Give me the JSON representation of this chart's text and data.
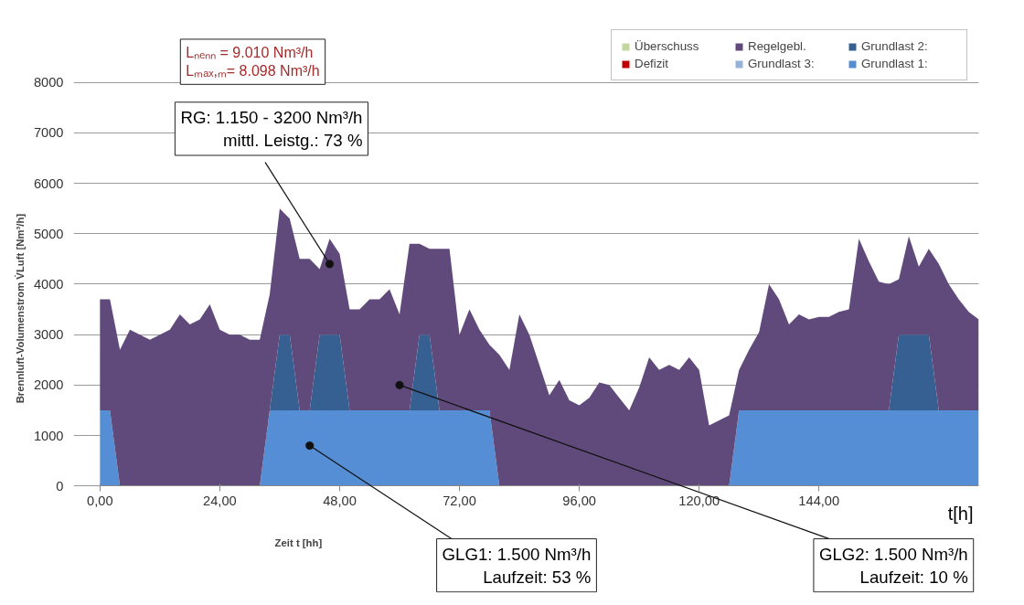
{
  "chart_data": {
    "type": "area",
    "stacked": true,
    "xlabel": "Zeit t [hh]",
    "ylabel": "Brennluft-Volumenstrom  V̇Luft  [Nm³/h]",
    "x": [
      0,
      2,
      4,
      6,
      8,
      10,
      12,
      14,
      16,
      18,
      20,
      22,
      24,
      26,
      28,
      30,
      32,
      34,
      36,
      38,
      40,
      42,
      44,
      46,
      48,
      50,
      52,
      54,
      56,
      58,
      60,
      62,
      64,
      66,
      68,
      70,
      72,
      74,
      76,
      78,
      80,
      82,
      84,
      86,
      88,
      90,
      92,
      94,
      96,
      98,
      100,
      102,
      104,
      106,
      108,
      110,
      112,
      114,
      116,
      118,
      120,
      122,
      124,
      126,
      128,
      130,
      132,
      134,
      136,
      138,
      140,
      142,
      144,
      146,
      148,
      150,
      152,
      154,
      156,
      158,
      160,
      162,
      164,
      166,
      168,
      170,
      172,
      174,
      176
    ],
    "xlim": [
      0,
      176
    ],
    "xticks": [
      {
        "value": 0,
        "label": "0,00"
      },
      {
        "value": 24,
        "label": "24,00"
      },
      {
        "value": 48,
        "label": "48,00"
      },
      {
        "value": 72,
        "label": "72,00"
      },
      {
        "value": 96,
        "label": "96,00"
      },
      {
        "value": 120,
        "label": "120,00"
      },
      {
        "value": 144,
        "label": "144,00"
      }
    ],
    "ylim": [
      0,
      8000
    ],
    "yticks": [
      0,
      1000,
      2000,
      3000,
      4000,
      5000,
      6000,
      7000,
      8000
    ],
    "grid": "y",
    "legend": "top right",
    "series": [
      {
        "name": "Grundlast 1:",
        "color": "#558ed5",
        "values": [
          1500,
          1500,
          0,
          0,
          0,
          0,
          0,
          0,
          0,
          0,
          0,
          0,
          0,
          0,
          0,
          0,
          0,
          1500,
          1500,
          1500,
          1500,
          1500,
          1500,
          1500,
          1500,
          1500,
          1500,
          1500,
          1500,
          1500,
          1500,
          1500,
          1500,
          1500,
          1500,
          1500,
          1500,
          1500,
          1500,
          1500,
          0,
          0,
          0,
          0,
          0,
          0,
          0,
          0,
          0,
          0,
          0,
          0,
          0,
          0,
          0,
          0,
          0,
          0,
          0,
          0,
          0,
          0,
          0,
          0,
          1500,
          1500,
          1500,
          1500,
          1500,
          1500,
          1500,
          1500,
          1500,
          1500,
          1500,
          1500,
          1500,
          1500,
          1500,
          1500,
          1500,
          1500,
          1500,
          1500,
          1500,
          1500,
          1500,
          1500,
          1500
        ]
      },
      {
        "name": "Grundlast 2:",
        "color": "#376092",
        "values": [
          0,
          0,
          0,
          0,
          0,
          0,
          0,
          0,
          0,
          0,
          0,
          0,
          0,
          0,
          0,
          0,
          0,
          0,
          1500,
          1500,
          0,
          0,
          1500,
          1500,
          1500,
          0,
          0,
          0,
          0,
          0,
          0,
          0,
          1500,
          1500,
          0,
          0,
          0,
          0,
          0,
          0,
          0,
          0,
          0,
          0,
          0,
          0,
          0,
          0,
          0,
          0,
          0,
          0,
          0,
          0,
          0,
          0,
          0,
          0,
          0,
          0,
          0,
          0,
          0,
          0,
          0,
          0,
          0,
          0,
          0,
          0,
          0,
          0,
          0,
          0,
          0,
          0,
          0,
          0,
          0,
          0,
          1500,
          1500,
          1500,
          1500,
          0,
          0,
          0,
          0,
          0
        ]
      },
      {
        "name": "Grundlast 3:",
        "color": "#95b3d7",
        "values": [
          null,
          null,
          null,
          null,
          null,
          null,
          null,
          null,
          null,
          null,
          null,
          null,
          null,
          null,
          null,
          null,
          null,
          null,
          null,
          null,
          null,
          null,
          null,
          null,
          null,
          null,
          null,
          null,
          null,
          null,
          null,
          null,
          null,
          null,
          null,
          null,
          null,
          null,
          null,
          null,
          null,
          null,
          null,
          null,
          null,
          null,
          null,
          null,
          null,
          null,
          null,
          null,
          null,
          null,
          null,
          null,
          null,
          null,
          null,
          null,
          null,
          null,
          null,
          null,
          null,
          null,
          null,
          null,
          null,
          null,
          null,
          null,
          null,
          null,
          null,
          null,
          null,
          null,
          null,
          null,
          null,
          null,
          null,
          null,
          null,
          null,
          null,
          null,
          null
        ]
      },
      {
        "name": "Regelgebl.",
        "color": "#604a7b",
        "values": [
          2200,
          2200,
          2700,
          3100,
          3000,
          2900,
          3000,
          3100,
          3400,
          3200,
          3300,
          3600,
          3100,
          3000,
          3000,
          2900,
          2900,
          2300,
          2500,
          2300,
          3000,
          3000,
          1300,
          1900,
          1600,
          2000,
          2000,
          2200,
          2200,
          2400,
          1900,
          3300,
          1800,
          1700,
          3200,
          3200,
          1500,
          2000,
          1600,
          1300,
          2600,
          2300,
          3400,
          3000,
          2400,
          1800,
          2100,
          1700,
          1600,
          1750,
          2050,
          2000,
          1750,
          1500,
          1950,
          2550,
          2300,
          2400,
          2300,
          2550,
          2300,
          1200,
          1300,
          1400,
          800,
          1200,
          1550,
          2500,
          2200,
          1700,
          1900,
          1800,
          1850,
          1850,
          1950,
          2000,
          3400,
          2950,
          2550,
          2500,
          1100,
          1950,
          1350,
          1700,
          2900,
          2500,
          2200,
          1950,
          1800
        ]
      },
      {
        "name": "Defizit",
        "color": "#c00000",
        "values": [
          null,
          null,
          null,
          null,
          null,
          null,
          null,
          null,
          null,
          null,
          null,
          null,
          null,
          null,
          null,
          null,
          null,
          null,
          null,
          null,
          null,
          null,
          null,
          null,
          null,
          null,
          null,
          null,
          null,
          null,
          null,
          null,
          null,
          null,
          null,
          null,
          null,
          null,
          null,
          null,
          null,
          null,
          null,
          null,
          null,
          null,
          null,
          null,
          null,
          null,
          null,
          null,
          null,
          null,
          null,
          null,
          null,
          null,
          null,
          null,
          null,
          null,
          null,
          null,
          null,
          null,
          null,
          null,
          null,
          null,
          null,
          null,
          null,
          null,
          null,
          null,
          null,
          null,
          null,
          null,
          null,
          null,
          null,
          null,
          null,
          null,
          null,
          null,
          null
        ]
      },
      {
        "name": "Überschuss",
        "color": "#c3d69b",
        "values": [
          null,
          null,
          null,
          null,
          null,
          null,
          null,
          null,
          null,
          null,
          null,
          null,
          null,
          null,
          null,
          null,
          null,
          null,
          null,
          null,
          null,
          null,
          null,
          null,
          null,
          null,
          null,
          null,
          null,
          null,
          null,
          null,
          null,
          null,
          null,
          null,
          null,
          null,
          null,
          null,
          null,
          null,
          null,
          null,
          null,
          null,
          null,
          null,
          null,
          null,
          null,
          null,
          null,
          null,
          null,
          null,
          null,
          null,
          null,
          null,
          null,
          null,
          null,
          null,
          null,
          null,
          null,
          null,
          null,
          null,
          null,
          null,
          null,
          null,
          null,
          null,
          null,
          null,
          null,
          null,
          null,
          null,
          null,
          null,
          null,
          null,
          null,
          null,
          null
        ]
      }
    ],
    "annotations": [
      "Lₙₑₙₙ = 9.010 Nm³/h\nLₘₐₓ,ₘ= 8.098 Nm³/h",
      {
        "text": "RG: 1.150 - 3200 Nm³/h\nmittl. Leistg.: 73 %",
        "x": 46,
        "y": 4400
      },
      {
        "text": "GLG1: 1.500 Nm³/h\nLaufzeit: 53 %",
        "x": 42,
        "y": 800
      },
      {
        "text": "GLG2: 1.500 Nm³/h\nLaufzeit: 10 %",
        "x": 60,
        "y": 2000
      },
      "t[h]"
    ]
  }
}
